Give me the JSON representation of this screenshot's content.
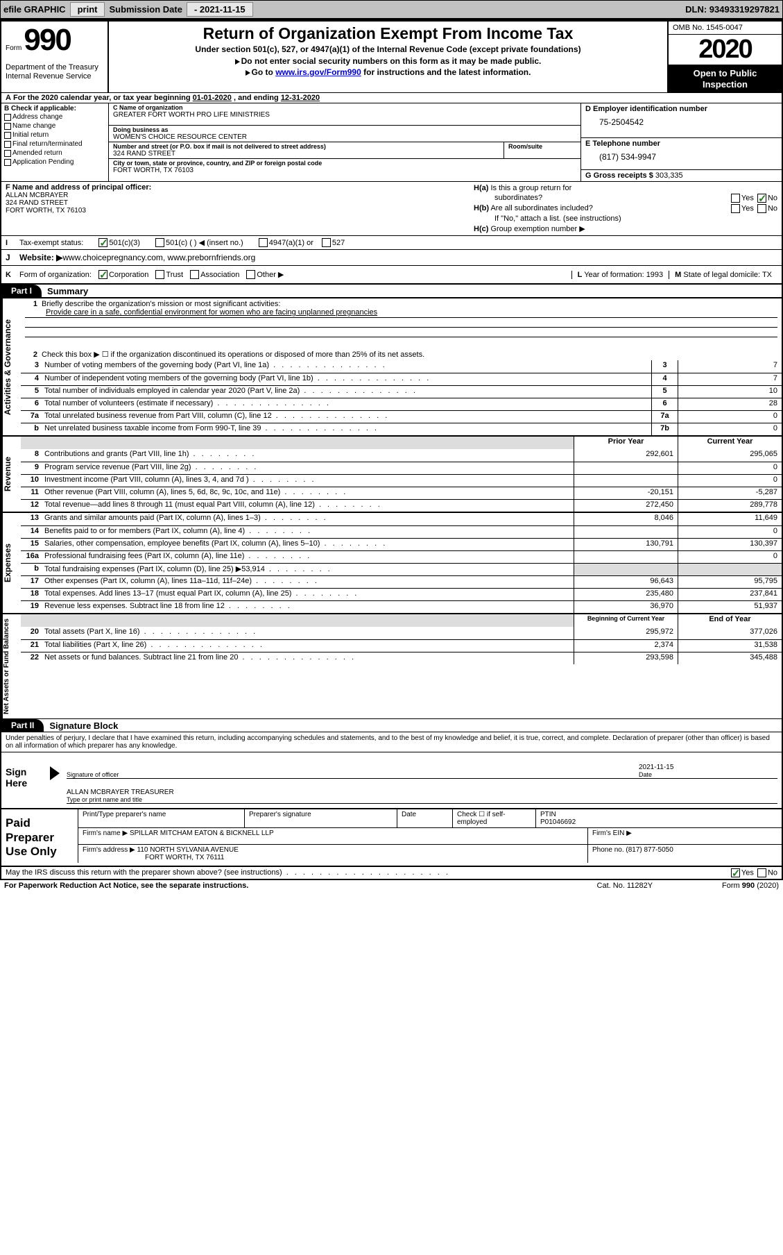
{
  "toolbar": {
    "efile": "efile GRAPHIC",
    "print": "print",
    "sub_label": "Submission Date",
    "sub_value": "- 2021-11-15",
    "dln": "DLN: 93493319297821"
  },
  "header": {
    "form_word": "Form",
    "form_num": "990",
    "dept1": "Department of the Treasury",
    "dept2": "Internal Revenue Service",
    "title": "Return of Organization Exempt From Income Tax",
    "sub": "Under section 501(c), 527, or 4947(a)(1) of the Internal Revenue Code (except private foundations)",
    "line1": "Do not enter social security numbers on this form as it may be made public.",
    "line2_a": "Go to ",
    "line2_link": "www.irs.gov/Form990",
    "line2_b": " for instructions and the latest information.",
    "omb": "OMB No. 1545-0047",
    "year": "2020",
    "open1": "Open to Public",
    "open2": "Inspection"
  },
  "lineA": {
    "text_a": "For the 2020 calendar year, or tax year beginning ",
    "begin": "01-01-2020",
    "text_b": ", and ending ",
    "end": "12-31-2020",
    "a_label": "A"
  },
  "secB": {
    "label": "B Check if applicable:",
    "opts": [
      "Address change",
      "Name change",
      "Initial return",
      "Final return/terminated",
      "Amended return",
      "Application Pending"
    ],
    "c_label": "C Name of organization",
    "c_val": "GREATER FORT WORTH PRO LIFE MINISTRIES",
    "dba_label": "Doing business as",
    "dba_val": "WOMEN'S CHOICE RESOURCE CENTER",
    "addr_label": "Number and street (or P.O. box if mail is not delivered to street address)",
    "addr_val": "324 RAND STREET",
    "room_label": "Room/suite",
    "city_label": "City or town, state or province, country, and ZIP or foreign postal code",
    "city_val": "FORT WORTH, TX  76103",
    "d_label": "D Employer identification number",
    "d_val": "75-2504542",
    "e_label": "E Telephone number",
    "e_val": "(817) 534-9947",
    "g_label": "G Gross receipts $ ",
    "g_val": "303,335"
  },
  "secF": {
    "f_label": "F Name and address of principal officer:",
    "f_name": "ALLAN MCBRAYER",
    "f_addr1": "324 RAND STREET",
    "f_addr2": "FORT WORTH, TX  76103",
    "ha_label": "H(a)",
    "ha_text": "Is this a group return for",
    "ha_text2": "subordinates?",
    "hb_label": "H(b)",
    "hb_text": "Are all subordinates included?",
    "h_note": "If \"No,\" attach a list. (see instructions)",
    "hc_label": "H(c)",
    "hc_text": "Group exemption number ▶",
    "yes": "Yes",
    "no": "No"
  },
  "lineI": {
    "label": "I",
    "text": "Tax-exempt status:",
    "o1": "501(c)(3)",
    "o2": "501(c) (   ) ◀ (insert no.)",
    "o3": "4947(a)(1) or",
    "o4": "527"
  },
  "lineJ": {
    "label": "J",
    "text": "Website: ▶",
    "val": " www.choicepregnancy.com, www.prebornfriends.org"
  },
  "lineK": {
    "label": "K",
    "text": "Form of organization:",
    "o1": "Corporation",
    "o2": "Trust",
    "o3": "Association",
    "o4": "Other ▶",
    "l_label": "L",
    "l_text": "Year of formation: ",
    "l_val": "1993",
    "m_label": "M",
    "m_text": "State of legal domicile: ",
    "m_val": "TX"
  },
  "part1": {
    "hdr": "Part I",
    "title": "Summary",
    "q1_num": "1",
    "q1": "Briefly describe the organization's mission or most significant activities:",
    "q1_val": "Provide care in a safe, confidential environment for women who are facing unplanned pregnancies",
    "q2_num": "2",
    "q2": "Check this box ▶ ☐ if the organization discontinued its operations or disposed of more than 25% of its net assets.",
    "rows_gov": [
      {
        "n": "3",
        "t": "Number of voting members of the governing body (Part VI, line 1a)",
        "c": "3",
        "v": "7"
      },
      {
        "n": "4",
        "t": "Number of independent voting members of the governing body (Part VI, line 1b)",
        "c": "4",
        "v": "7"
      },
      {
        "n": "5",
        "t": "Total number of individuals employed in calendar year 2020 (Part V, line 2a)",
        "c": "5",
        "v": "10"
      },
      {
        "n": "6",
        "t": "Total number of volunteers (estimate if necessary)",
        "c": "6",
        "v": "28"
      },
      {
        "n": "7a",
        "t": "Total unrelated business revenue from Part VIII, column (C), line 12",
        "c": "7a",
        "v": "0"
      },
      {
        "n": "b",
        "t": "Net unrelated business taxable income from Form 990-T, line 39",
        "c": "7b",
        "v": "0"
      }
    ],
    "hdr_prior": "Prior Year",
    "hdr_curr": "Current Year",
    "rows_rev": [
      {
        "n": "8",
        "t": "Contributions and grants (Part VIII, line 1h)",
        "p": "292,601",
        "c": "295,065"
      },
      {
        "n": "9",
        "t": "Program service revenue (Part VIII, line 2g)",
        "p": "",
        "c": "0"
      },
      {
        "n": "10",
        "t": "Investment income (Part VIII, column (A), lines 3, 4, and 7d )",
        "p": "",
        "c": "0"
      },
      {
        "n": "11",
        "t": "Other revenue (Part VIII, column (A), lines 5, 6d, 8c, 9c, 10c, and 11e)",
        "p": "-20,151",
        "c": "-5,287"
      },
      {
        "n": "12",
        "t": "Total revenue—add lines 8 through 11 (must equal Part VIII, column (A), line 12)",
        "p": "272,450",
        "c": "289,778"
      }
    ],
    "rows_exp": [
      {
        "n": "13",
        "t": "Grants and similar amounts paid (Part IX, column (A), lines 1–3)",
        "p": "8,046",
        "c": "11,649"
      },
      {
        "n": "14",
        "t": "Benefits paid to or for members (Part IX, column (A), line 4)",
        "p": "",
        "c": "0"
      },
      {
        "n": "15",
        "t": "Salaries, other compensation, employee benefits (Part IX, column (A), lines 5–10)",
        "p": "130,791",
        "c": "130,397"
      },
      {
        "n": "16a",
        "t": "Professional fundraising fees (Part IX, column (A), line 11e)",
        "p": "",
        "c": "0"
      },
      {
        "n": "b",
        "t": "Total fundraising expenses (Part IX, column (D), line 25) ▶53,914",
        "p": "SHADE",
        "c": "SHADE"
      },
      {
        "n": "17",
        "t": "Other expenses (Part IX, column (A), lines 11a–11d, 11f–24e)",
        "p": "96,643",
        "c": "95,795"
      },
      {
        "n": "18",
        "t": "Total expenses. Add lines 13–17 (must equal Part IX, column (A), line 25)",
        "p": "235,480",
        "c": "237,841"
      },
      {
        "n": "19",
        "t": "Revenue less expenses. Subtract line 18 from line 12",
        "p": "36,970",
        "c": "51,937"
      }
    ],
    "hdr_beg": "Beginning of Current Year",
    "hdr_end": "End of Year",
    "rows_net": [
      {
        "n": "20",
        "t": "Total assets (Part X, line 16)",
        "p": "295,972",
        "c": "377,026"
      },
      {
        "n": "21",
        "t": "Total liabilities (Part X, line 26)",
        "p": "2,374",
        "c": "31,538"
      },
      {
        "n": "22",
        "t": "Net assets or fund balances. Subtract line 21 from line 20",
        "p": "293,598",
        "c": "345,488"
      }
    ],
    "side_gov": "Activities & Governance",
    "side_rev": "Revenue",
    "side_exp": "Expenses",
    "side_net": "Net Assets or Fund Balances"
  },
  "part2": {
    "hdr": "Part II",
    "title": "Signature Block",
    "penalty": "Under penalties of perjury, I declare that I have examined this return, including accompanying schedules and statements, and to the best of my knowledge and belief, it is true, correct, and complete. Declaration of preparer (other than officer) is based on all information of which preparer has any knowledge.",
    "sign_here": "Sign Here",
    "sig_officer": "Signature of officer",
    "sig_date": "Date",
    "sig_date_val": "2021-11-15",
    "sig_name": "ALLAN MCBRAYER  TREASURER",
    "sig_name_label": "Type or print name and title",
    "paid_label": "Paid Preparer Use Only",
    "prep_name_label": "Print/Type preparer's name",
    "prep_sig_label": "Preparer's signature",
    "prep_date_label": "Date",
    "self_emp": "Check ☐ if self-employed",
    "ptin_label": "PTIN",
    "ptin_val": "P01046692",
    "firm_name_label": "Firm's name   ▶",
    "firm_name": "SPILLAR MITCHAM EATON & BICKNELL LLP",
    "firm_ein_label": "Firm's EIN ▶",
    "firm_addr_label": "Firm's address ▶",
    "firm_addr1": "110 NORTH SYLVANIA AVENUE",
    "firm_addr2": "FORT WORTH, TX  76111",
    "firm_phone_label": "Phone no. ",
    "firm_phone": "(817) 877-5050",
    "discuss": "May the IRS discuss this return with the preparer shown above? (see instructions)"
  },
  "footer": {
    "left": "For Paperwork Reduction Act Notice, see the separate instructions.",
    "mid": "Cat. No. 11282Y",
    "right": "Form 990 (2020)"
  }
}
